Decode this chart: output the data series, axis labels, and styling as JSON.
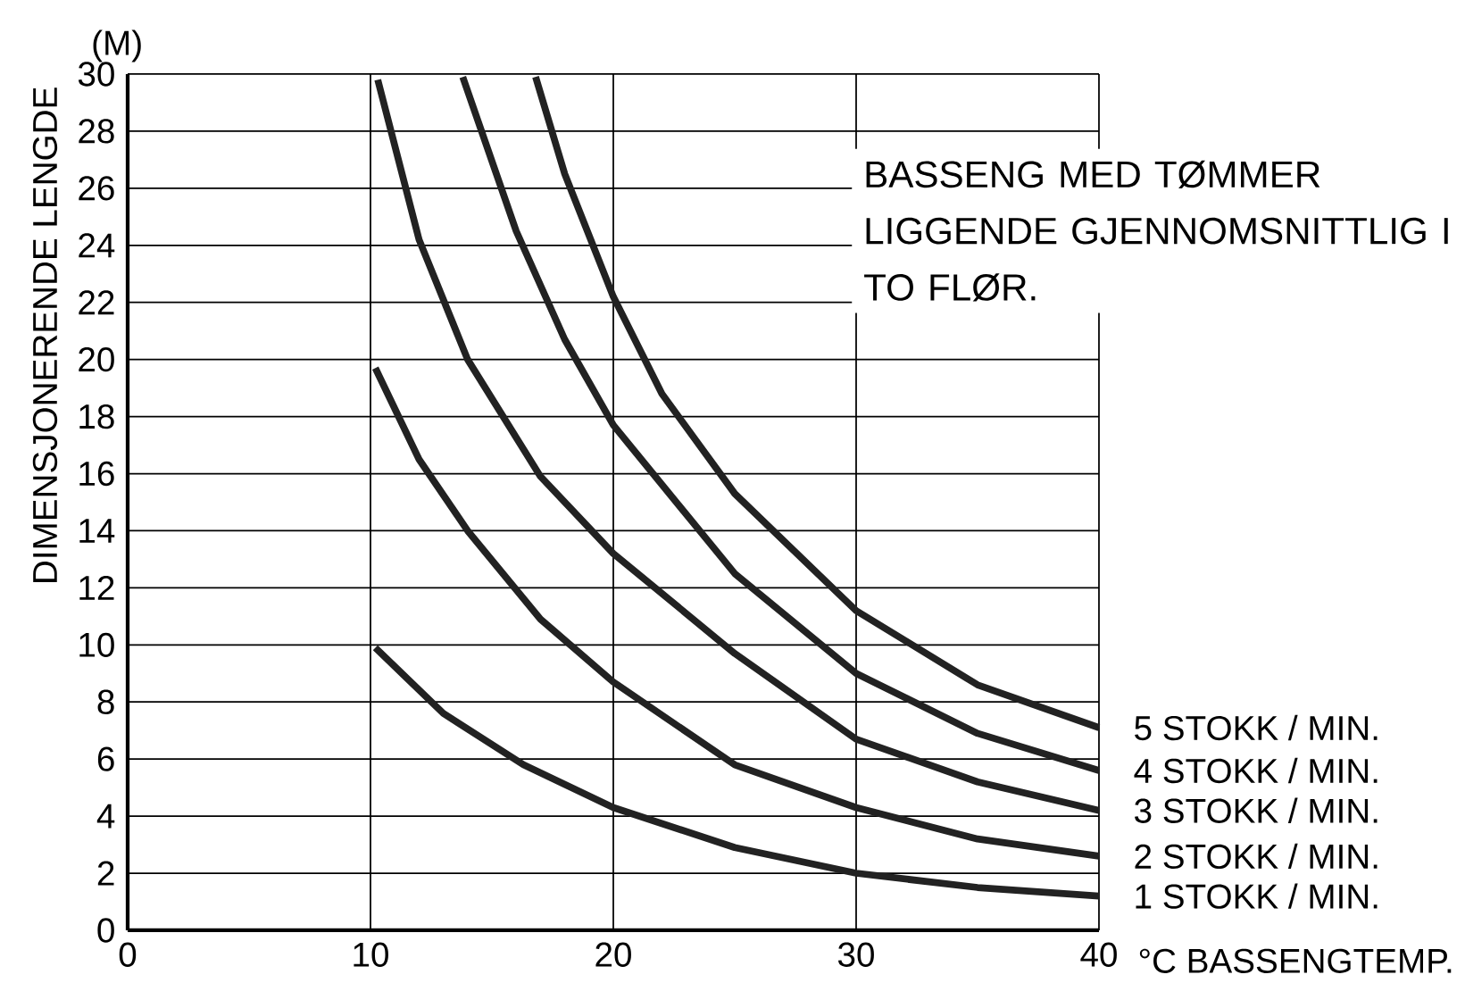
{
  "chart_data": {
    "type": "line",
    "xlabel": "°C BASSENGTEMP.",
    "ylabel": "DIMENSJONERENDE LENGDE",
    "annotations": [
      "(M)",
      "BASSENG MED TØMMER LIGGENDE GJENNOMSNITTLIG I TO FLØR."
    ],
    "xlim": [
      0,
      40
    ],
    "ylim": [
      0,
      30
    ],
    "xticks": [
      0,
      10,
      20,
      30,
      40
    ],
    "yticks": [
      0,
      2,
      4,
      6,
      8,
      10,
      12,
      14,
      16,
      18,
      20,
      22,
      24,
      26,
      28,
      30
    ],
    "grid": true,
    "series": [
      {
        "name": "5 STOKK / MIN.",
        "color": "#222222",
        "x": [
          16.8,
          18,
          20,
          22,
          25,
          30,
          35,
          40
        ],
        "values": [
          29.9,
          26.5,
          22.2,
          18.8,
          15.3,
          11.2,
          8.6,
          7.1
        ]
      },
      {
        "name": "4 STOKK / MIN.",
        "color": "#222222",
        "x": [
          13.8,
          16,
          18,
          20,
          25,
          30,
          35,
          40
        ],
        "values": [
          29.9,
          24.5,
          20.7,
          17.7,
          12.5,
          9.0,
          6.9,
          5.6
        ]
      },
      {
        "name": "3 STOKK / MIN.",
        "color": "#222222",
        "x": [
          10.3,
          12,
          14,
          17,
          20,
          25,
          30,
          35,
          40
        ],
        "values": [
          29.8,
          24.2,
          20,
          15.9,
          13.2,
          9.7,
          6.7,
          5.2,
          4.2
        ]
      },
      {
        "name": "2 STOKK / MIN.",
        "color": "#222222",
        "x": [
          10.2,
          12,
          14,
          17,
          20,
          25,
          30,
          35,
          40
        ],
        "values": [
          19.7,
          16.5,
          14,
          10.9,
          8.7,
          5.8,
          4.3,
          3.2,
          2.6
        ]
      },
      {
        "name": "1 STOKK / MIN.",
        "color": "#222222",
        "x": [
          10.2,
          13,
          16.3,
          20,
          25,
          30,
          35,
          40
        ],
        "values": [
          9.9,
          7.6,
          5.8,
          4.3,
          2.9,
          2.0,
          1.5,
          1.2
        ]
      }
    ]
  }
}
